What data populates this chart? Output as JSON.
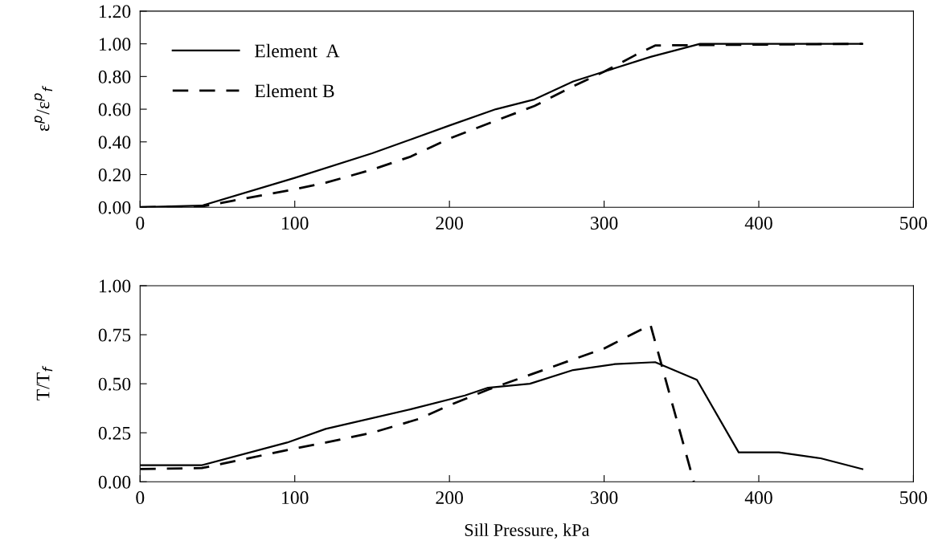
{
  "chart_data": [
    {
      "type": "line",
      "ylabel": "ε$^{p}$/ε$^{p}$$_{f}$",
      "xlim": [
        0,
        500
      ],
      "xticks": [
        0,
        100,
        200,
        300,
        400,
        500
      ],
      "ylim": [
        0,
        1.2
      ],
      "yticks": [
        {
          "value": 0,
          "label": "0.00"
        },
        {
          "value": 0.2,
          "label": "0.20"
        },
        {
          "value": 0.4,
          "label": "0.40"
        },
        {
          "value": 0.6,
          "label": "0.60"
        },
        {
          "value": 0.8,
          "label": "0.80"
        },
        {
          "value": 1.0,
          "label": "1.00"
        },
        {
          "value": 1.2,
          "label": "1.20"
        }
      ],
      "grid": false,
      "legend": "top left",
      "series": [
        {
          "name": "Element  A",
          "color": "#000000",
          "line_style": "solid",
          "x": [
            0,
            40,
            100,
            150,
            200,
            230,
            255,
            280,
            300,
            330,
            362,
            467
          ],
          "values": [
            0,
            0.01,
            0.18,
            0.33,
            0.5,
            0.6,
            0.66,
            0.77,
            0.83,
            0.92,
            1.0,
            1.0
          ]
        },
        {
          "name": "Element B",
          "color": "#000000",
          "line_style": "dashed",
          "x": [
            0,
            40,
            60,
            100,
            120,
            150,
            175,
            200,
            230,
            255,
            280,
            300,
            320,
            333,
            467
          ],
          "values": [
            0,
            0.005,
            0.04,
            0.11,
            0.15,
            0.23,
            0.31,
            0.42,
            0.53,
            0.62,
            0.74,
            0.83,
            0.93,
            0.99,
            1.0
          ]
        }
      ]
    },
    {
      "type": "line",
      "xlabel": "Sill Pressure, kPa",
      "ylabel": "T/T$_{f}$",
      "xlim": [
        0,
        500
      ],
      "xticks": [
        0,
        100,
        200,
        300,
        400,
        500
      ],
      "ylim": [
        0,
        1.0
      ],
      "yticks": [
        {
          "value": 0,
          "label": "0.00"
        },
        {
          "value": 0.25,
          "label": "0.25"
        },
        {
          "value": 0.5,
          "label": "0.50"
        },
        {
          "value": 0.75,
          "label": "0.75"
        },
        {
          "value": 1.0,
          "label": "1.00"
        }
      ],
      "grid": false,
      "series": [
        {
          "color": "#000000",
          "line_style": "solid",
          "x": [
            0,
            40,
            95,
            120,
            175,
            210,
            225,
            252,
            280,
            307,
            333,
            360,
            387,
            413,
            440,
            467
          ],
          "values": [
            0.085,
            0.085,
            0.2,
            0.27,
            0.37,
            0.44,
            0.48,
            0.5,
            0.57,
            0.6,
            0.61,
            0.52,
            0.15,
            0.15,
            0.12,
            0.065
          ]
        },
        {
          "color": "#000000",
          "line_style": "dashed",
          "x": [
            0,
            40,
            100,
            120,
            150,
            180,
            200,
            225,
            250,
            300,
            330,
            358
          ],
          "values": [
            0.065,
            0.07,
            0.17,
            0.2,
            0.25,
            0.32,
            0.39,
            0.47,
            0.54,
            0.68,
            0.8,
            0.0
          ]
        }
      ]
    }
  ]
}
